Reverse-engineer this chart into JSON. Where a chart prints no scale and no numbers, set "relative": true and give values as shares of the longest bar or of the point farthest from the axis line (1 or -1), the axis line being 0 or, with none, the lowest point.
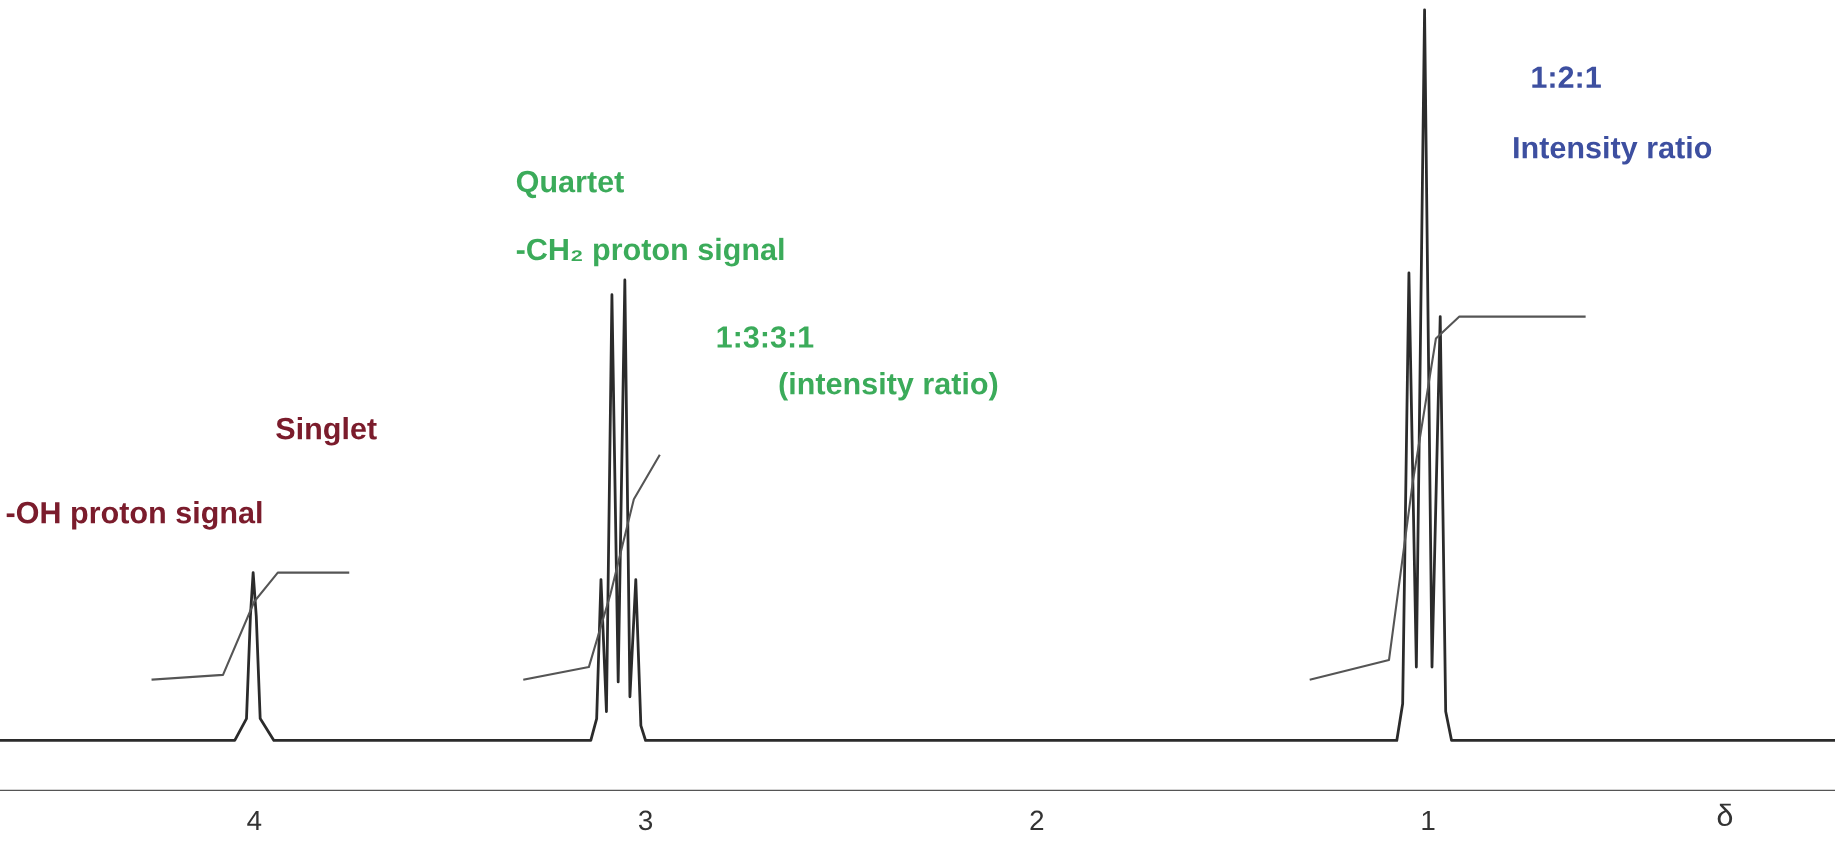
{
  "chart_data": {
    "type": "line",
    "relative": true,
    "xlabel": "δ",
    "xlim": [
      4.65,
      -0.04
    ],
    "xticks": [
      4,
      3,
      2,
      1
    ],
    "grid": false,
    "marker": "none",
    "line_style": "solid",
    "series": [
      {
        "color": "#2b2b2b",
        "x": [
          4.65,
          4.05,
          4.02,
          4.01,
          4.003,
          3.995,
          3.985,
          3.95,
          3.14,
          3.125,
          3.114,
          3.1,
          3.086,
          3.07,
          3.053,
          3.04,
          3.025,
          3.012,
          3.0,
          1.08,
          1.065,
          1.049,
          1.03,
          1.009,
          0.99,
          0.969,
          0.955,
          0.94,
          -0.04
        ],
        "values": [
          0.064,
          0.064,
          0.092,
          0.223,
          0.279,
          0.223,
          0.092,
          0.064,
          0.064,
          0.092,
          0.27,
          0.101,
          0.635,
          0.139,
          0.654,
          0.12,
          0.27,
          0.083,
          0.064,
          0.064,
          0.111,
          0.663,
          0.158,
          1.0,
          0.158,
          0.607,
          0.101,
          0.064,
          0.064
        ]
      },
      {
        "color": "#555555",
        "x": [
          4.26,
          4.08,
          4.0,
          3.94,
          3.76
        ],
        "values": [
          0.142,
          0.148,
          0.242,
          0.279,
          0.279
        ]
      },
      {
        "color": "#555555",
        "x": [
          3.31,
          3.145,
          3.09,
          3.03,
          2.965
        ],
        "values": [
          0.142,
          0.158,
          0.251,
          0.373,
          0.429
        ]
      },
      {
        "color": "#555555",
        "x": [
          1.3,
          1.1,
          1.04,
          0.98,
          0.92,
          0.6
        ],
        "values": [
          0.142,
          0.167,
          0.392,
          0.579,
          0.607,
          0.607
        ]
      }
    ],
    "annotations": [
      "Singlet",
      "-OH proton signal",
      "Quartet",
      "-CH₂ proton signal",
      "1:3:3:1",
      "(intensity ratio)",
      "1:2:1",
      "Intensity ratio"
    ]
  }
}
